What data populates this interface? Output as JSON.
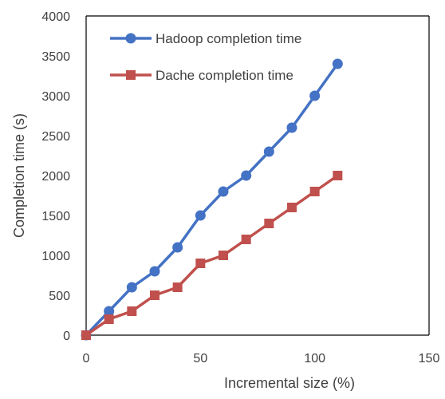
{
  "chart_data": {
    "type": "line",
    "xlabel": "Incremental size (%)",
    "ylabel": "Completion time (s)",
    "xlim": [
      0,
      150
    ],
    "ylim": [
      0,
      4000
    ],
    "x_ticks": [
      "0",
      "50",
      "100",
      "150"
    ],
    "y_ticks": [
      "0",
      "500",
      "1000",
      "1500",
      "2000",
      "2500",
      "3000",
      "3500",
      "4000"
    ],
    "grid": false,
    "legend_position": "top-left",
    "series": [
      {
        "name": "Hadoop completion time",
        "color": "#4472C4",
        "marker": "circle",
        "x": [
          0,
          10,
          20,
          30,
          40,
          50,
          60,
          70,
          80,
          90,
          100,
          110
        ],
        "y": [
          0,
          300,
          600,
          800,
          1100,
          1500,
          1800,
          2000,
          2300,
          2600,
          3000,
          3400
        ]
      },
      {
        "name": "Dache completion time",
        "color": "#C0504D",
        "marker": "square",
        "x": [
          0,
          10,
          20,
          30,
          40,
          50,
          60,
          70,
          80,
          90,
          100,
          110
        ],
        "y": [
          0,
          200,
          300,
          500,
          600,
          900,
          1000,
          1200,
          1400,
          1600,
          1800,
          2000
        ]
      }
    ]
  }
}
